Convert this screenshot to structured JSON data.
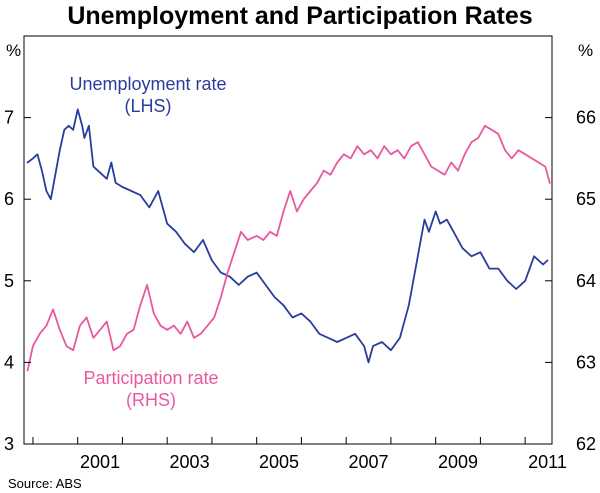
{
  "chart_data": {
    "type": "line",
    "title": "Unemployment and Participation Rates",
    "source": "Source: ABS",
    "left_unit": "%",
    "right_unit": "%",
    "xlim": [
      1999.8,
      2011.6
    ],
    "x_ticks": [
      2001,
      2003,
      2005,
      2007,
      2009,
      2011
    ],
    "x_tick_labels": [
      "2001",
      "2003",
      "2005",
      "2007",
      "2009",
      "2011"
    ],
    "y_left": {
      "lim": [
        3,
        8
      ],
      "ticks": [
        3,
        4,
        5,
        6,
        7
      ],
      "tick_labels": [
        "3",
        "4",
        "5",
        "6",
        "7"
      ]
    },
    "y_right": {
      "lim": [
        62,
        67
      ],
      "ticks": [
        62,
        63,
        64,
        65,
        66
      ],
      "tick_labels": [
        "62",
        "63",
        "64",
        "65",
        "66"
      ]
    },
    "series": [
      {
        "name": "Unemployment rate",
        "sub": "(LHS)",
        "axis": "left",
        "color": "#2a3c9e",
        "x": [
          1999.88,
          2000.0,
          2000.1,
          2000.2,
          2000.3,
          2000.4,
          2000.5,
          2000.6,
          2000.7,
          2000.8,
          2000.9,
          2001.0,
          2001.1,
          2001.15,
          2001.25,
          2001.35,
          2001.45,
          2001.55,
          2001.65,
          2001.75,
          2001.85,
          2002.0,
          2002.2,
          2002.4,
          2002.6,
          2002.8,
          2003.0,
          2003.2,
          2003.4,
          2003.6,
          2003.8,
          2004.0,
          2004.2,
          2004.4,
          2004.6,
          2004.8,
          2005.0,
          2005.2,
          2005.4,
          2005.6,
          2005.8,
          2006.0,
          2006.2,
          2006.4,
          2006.6,
          2006.8,
          2007.0,
          2007.2,
          2007.4,
          2007.5,
          2007.6,
          2007.8,
          2008.0,
          2008.2,
          2008.4,
          2008.6,
          2008.75,
          2008.85,
          2009.0,
          2009.1,
          2009.25,
          2009.4,
          2009.6,
          2009.8,
          2010.0,
          2010.2,
          2010.4,
          2010.6,
          2010.8,
          2011.0,
          2011.2,
          2011.4,
          2011.5
        ],
        "values": [
          6.45,
          6.5,
          6.55,
          6.35,
          6.1,
          6.0,
          6.3,
          6.6,
          6.85,
          6.9,
          6.85,
          7.1,
          6.9,
          6.75,
          6.9,
          6.4,
          6.35,
          6.3,
          6.25,
          6.45,
          6.2,
          6.15,
          6.1,
          6.05,
          5.9,
          6.1,
          5.7,
          5.6,
          5.45,
          5.35,
          5.5,
          5.25,
          5.1,
          5.05,
          4.95,
          5.05,
          5.1,
          4.95,
          4.8,
          4.7,
          4.55,
          4.6,
          4.5,
          4.35,
          4.3,
          4.25,
          4.3,
          4.35,
          4.2,
          4.0,
          4.2,
          4.25,
          4.15,
          4.3,
          4.7,
          5.3,
          5.75,
          5.6,
          5.85,
          5.7,
          5.75,
          5.6,
          5.4,
          5.3,
          5.35,
          5.15,
          5.15,
          5.0,
          4.9,
          5.0,
          5.3,
          5.2,
          5.25
        ]
      },
      {
        "name": "Participation rate",
        "sub": "(RHS)",
        "axis": "right",
        "color": "#e9589f",
        "x": [
          1999.88,
          2000.0,
          2000.15,
          2000.3,
          2000.45,
          2000.6,
          2000.75,
          2000.9,
          2001.05,
          2001.2,
          2001.35,
          2001.5,
          2001.65,
          2001.8,
          2001.95,
          2002.1,
          2002.25,
          2002.4,
          2002.55,
          2002.7,
          2002.85,
          2003.0,
          2003.15,
          2003.3,
          2003.45,
          2003.6,
          2003.75,
          2003.9,
          2004.05,
          2004.2,
          2004.35,
          2004.5,
          2004.65,
          2004.8,
          2005.0,
          2005.15,
          2005.3,
          2005.45,
          2005.6,
          2005.75,
          2005.9,
          2006.05,
          2006.2,
          2006.35,
          2006.5,
          2006.65,
          2006.8,
          2006.95,
          2007.1,
          2007.25,
          2007.4,
          2007.55,
          2007.7,
          2007.85,
          2008.0,
          2008.15,
          2008.3,
          2008.45,
          2008.6,
          2008.75,
          2008.9,
          2009.05,
          2009.2,
          2009.35,
          2009.5,
          2009.65,
          2009.8,
          2009.95,
          2010.1,
          2010.25,
          2010.4,
          2010.55,
          2010.7,
          2010.85,
          2011.0,
          2011.15,
          2011.3,
          2011.45,
          2011.55
        ],
        "values": [
          62.9,
          63.2,
          63.35,
          63.45,
          63.65,
          63.4,
          63.2,
          63.15,
          63.45,
          63.55,
          63.3,
          63.4,
          63.5,
          63.15,
          63.2,
          63.35,
          63.4,
          63.7,
          63.95,
          63.6,
          63.45,
          63.4,
          63.45,
          63.35,
          63.5,
          63.3,
          63.35,
          63.45,
          63.55,
          63.8,
          64.1,
          64.35,
          64.6,
          64.5,
          64.55,
          64.5,
          64.6,
          64.55,
          64.85,
          65.1,
          64.85,
          65.0,
          65.1,
          65.2,
          65.35,
          65.3,
          65.45,
          65.55,
          65.5,
          65.65,
          65.55,
          65.6,
          65.5,
          65.65,
          65.55,
          65.6,
          65.5,
          65.65,
          65.7,
          65.55,
          65.4,
          65.35,
          65.3,
          65.45,
          65.35,
          65.55,
          65.7,
          65.75,
          65.9,
          65.85,
          65.8,
          65.6,
          65.5,
          65.6,
          65.55,
          65.5,
          65.45,
          65.4,
          65.2
        ]
      }
    ],
    "annotations": [
      {
        "series": 0,
        "text": "Unemployment rate",
        "sub": "(LHS)"
      },
      {
        "series": 1,
        "text": "Participation rate",
        "sub": "(RHS)"
      }
    ]
  }
}
